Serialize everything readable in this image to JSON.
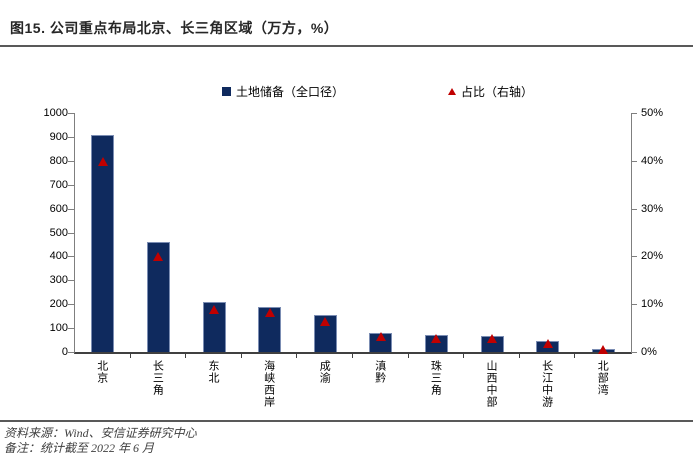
{
  "title": "图15. 公司重点布局北京、长三角区域（万方，%）",
  "legend": {
    "items": [
      {
        "label": "土地储备（全口径）",
        "marker": "square",
        "color": "#0F2A5E"
      },
      {
        "label": "占比（右轴）",
        "marker": "triangle",
        "color": "#C00000"
      }
    ]
  },
  "footer": {
    "source": "资料来源：Wind、安信证券研究中心",
    "note": "备注：统计截至 2022 年 6 月"
  },
  "colors": {
    "bar": "#0F2A5E",
    "marker": "#C00000",
    "axis_line": "#7f7f7f",
    "bottom_axis_line": "#404040"
  },
  "chart_data": {
    "type": "bar",
    "title": "图15. 公司重点布局北京、长三角区域（万方，%）",
    "categories": [
      "北京",
      "长三角",
      "东北",
      "海峡西岸",
      "成渝",
      "滇黔",
      "珠三角",
      "山西中部",
      "长江中游",
      "北部湾"
    ],
    "series": [
      {
        "name": "土地储备（全口径）",
        "type": "bar",
        "axis": "left",
        "color": "#0F2A5E",
        "values": [
          910,
          460,
          210,
          190,
          155,
          80,
          70,
          68,
          45,
          13
        ]
      },
      {
        "name": "占比（右轴）",
        "type": "scatter",
        "marker": "triangle",
        "axis": "right",
        "color": "#C00000",
        "unit": "%",
        "values": [
          39.8,
          20.0,
          8.9,
          8.2,
          6.3,
          3.2,
          2.8,
          2.8,
          1.8,
          0.5
        ]
      }
    ],
    "left_axis": {
      "min": 0,
      "max": 1000,
      "tick_step": 100,
      "tick_labels_top_to_bottom": [
        "1000",
        "900",
        "800",
        "700",
        "600",
        "500",
        "400",
        "300",
        "200",
        "100",
        "0"
      ]
    },
    "right_axis": {
      "min": 0,
      "max": 50,
      "tick_step": 10,
      "tick_labels_top_to_bottom": [
        "50%",
        "40%",
        "30%",
        "20%",
        "10%",
        "0%"
      ]
    },
    "grid": false,
    "legend_position": "top-center"
  }
}
